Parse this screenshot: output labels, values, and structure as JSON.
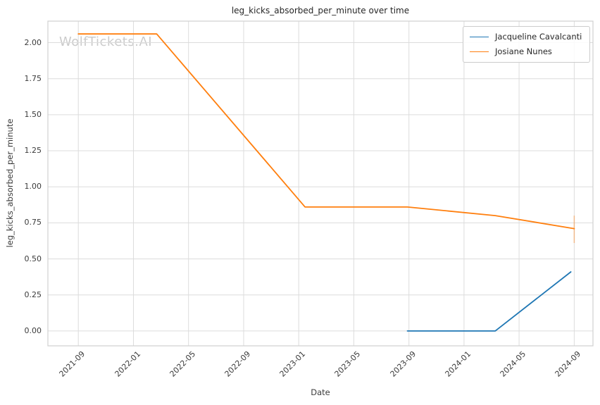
{
  "watermark": "WolfTickets.AI",
  "chart_data": {
    "type": "line",
    "title": "leg_kicks_absorbed_per_minute over time",
    "xlabel": "Date",
    "ylabel": "leg_kicks_absorbed_per_minute",
    "grid": true,
    "legend_position": "upper right",
    "x_ticks": [
      "2021-09",
      "2022-01",
      "2022-05",
      "2022-09",
      "2023-01",
      "2023-05",
      "2023-09",
      "2024-01",
      "2024-05",
      "2024-09"
    ],
    "y_ticks": {
      "values": [
        0,
        0.25,
        0.5,
        0.75,
        1.0,
        1.25,
        1.5,
        1.75,
        2.0
      ],
      "labels": [
        "0.00",
        "0.25",
        "0.50",
        "0.75",
        "1.00",
        "1.25",
        "1.50",
        "1.75",
        "2.00"
      ]
    },
    "xlim": [
      "2021-06-25",
      "2024-10-12"
    ],
    "ylim": [
      -0.103,
      2.149
    ],
    "series": [
      {
        "name": "Jacqueline Cavalcanti",
        "color": "#1f77b4",
        "points": [
          [
            "2023-08-28",
            0.0
          ],
          [
            "2024-03-09",
            0.0
          ],
          [
            "2024-08-24",
            0.41
          ]
        ]
      },
      {
        "name": "Josiane Nunes",
        "color": "#ff7f0e",
        "points": [
          [
            "2021-09-01",
            2.06
          ],
          [
            "2022-02-22",
            2.06
          ],
          [
            "2023-01-15",
            0.86
          ],
          [
            "2023-08-28",
            0.86
          ],
          [
            "2024-03-09",
            0.8
          ],
          [
            "2024-09-01",
            0.71
          ]
        ],
        "error_bars": [
          {
            "x": "2024-09-01",
            "low": 0.61,
            "high": 0.8
          }
        ]
      }
    ]
  }
}
